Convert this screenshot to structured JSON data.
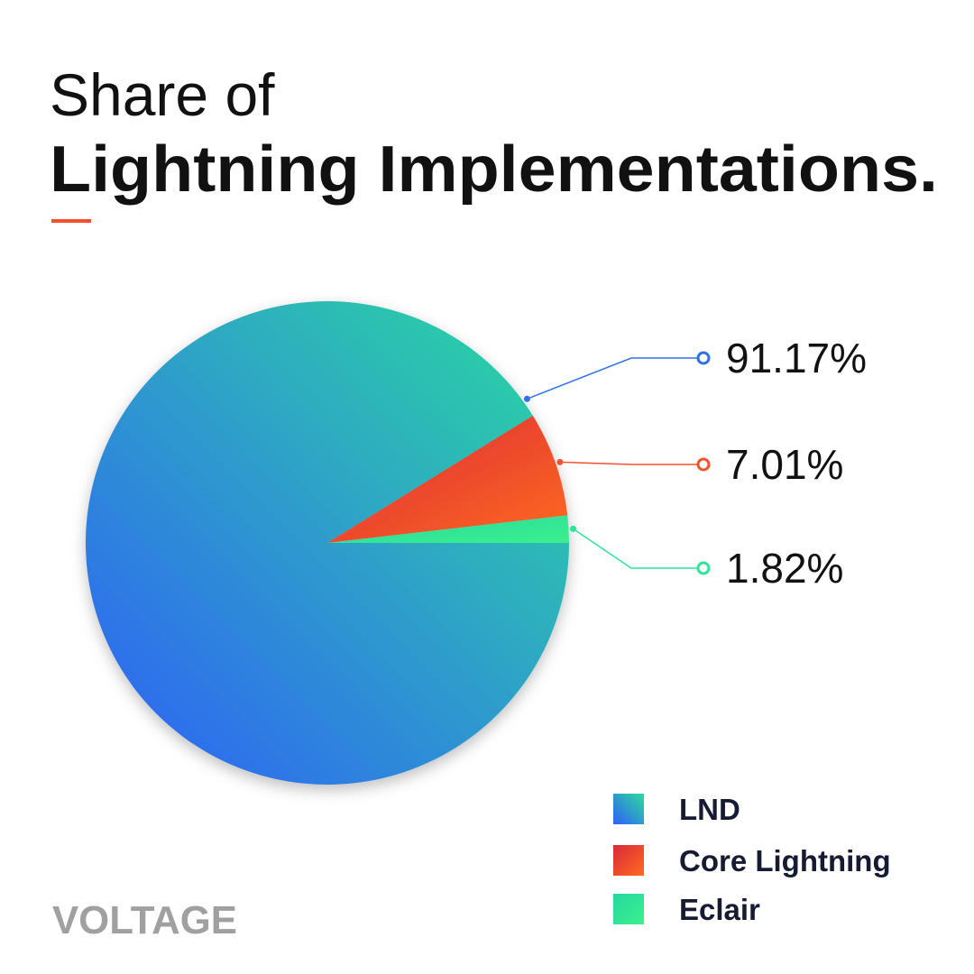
{
  "chart_data": {
    "type": "pie",
    "title_lines": [
      "Share of",
      "Lightning Implementations."
    ],
    "brand": "VOLTAGE",
    "series": [
      {
        "name": "LND",
        "color": "#2f72e8",
        "values": [
          91.17
        ],
        "value_labels": [
          "91.17%"
        ]
      },
      {
        "name": "Core Lightning",
        "color": "#f4532a",
        "values": [
          7.01
        ],
        "value_labels": [
          "7.01%"
        ]
      },
      {
        "name": "Eclair",
        "color": "#2fe39a",
        "values": [
          1.82
        ],
        "value_labels": [
          "1.82%"
        ]
      }
    ]
  }
}
